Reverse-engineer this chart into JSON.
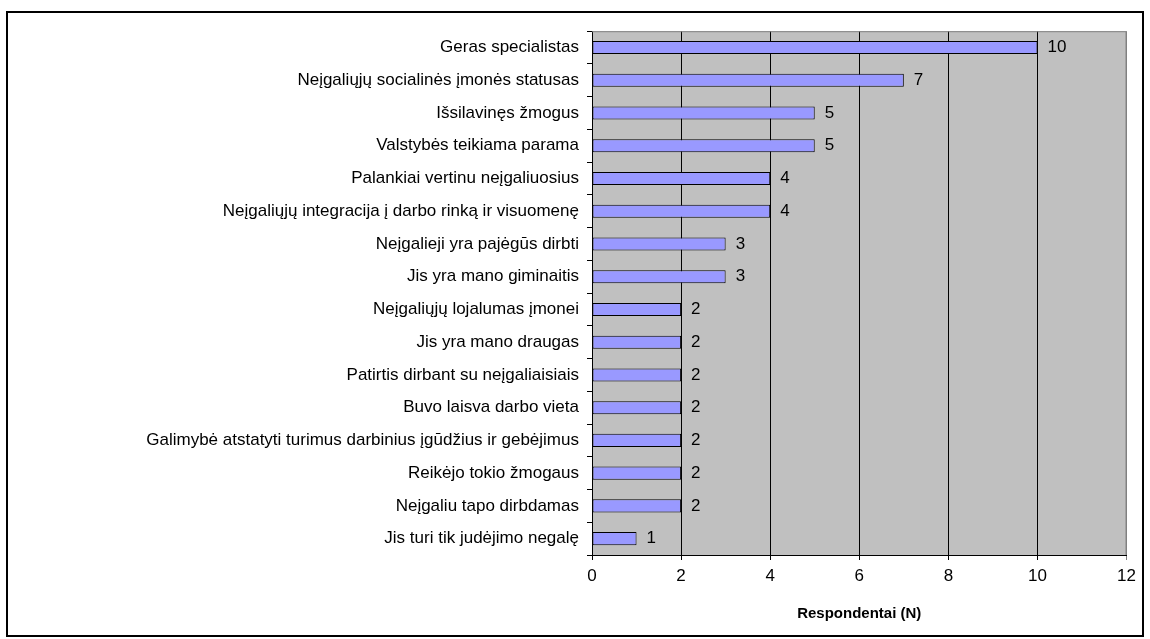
{
  "chart_data": {
    "type": "bar",
    "orientation": "horizontal",
    "categories": [
      "Geras specialistas",
      "Neįgaliųjų socialinės įmonės statusas",
      "Išsilavinęs žmogus",
      "Valstybės teikiama parama",
      "Palankiai vertinu neįgaliuosius",
      "Neįgaliųjų integracija į darbo rinką ir visuomenę",
      "Neįgalieji yra pajėgūs dirbti",
      "Jis yra mano giminaitis",
      "Neįgaliųjų lojalumas įmonei",
      "Jis yra mano draugas",
      "Patirtis dirbant su neįgaliaisiais",
      "Buvo laisva darbo vieta",
      "Galimybė atstatyti turimus darbinius įgūdžius ir gebėjimus",
      "Reikėjo tokio žmogaus",
      "Neįgaliu tapo dirbdamas",
      "Jis turi tik judėjimo negalę"
    ],
    "values": [
      10,
      7,
      5,
      5,
      4,
      4,
      3,
      3,
      2,
      2,
      2,
      2,
      2,
      2,
      2,
      1
    ],
    "color": "#9999ff",
    "xlabel": "Respondentai (N)",
    "xlim": [
      0,
      12
    ],
    "xticks": [
      0,
      2,
      4,
      6,
      8,
      10,
      12
    ],
    "grid": "x",
    "data_labels": true
  }
}
